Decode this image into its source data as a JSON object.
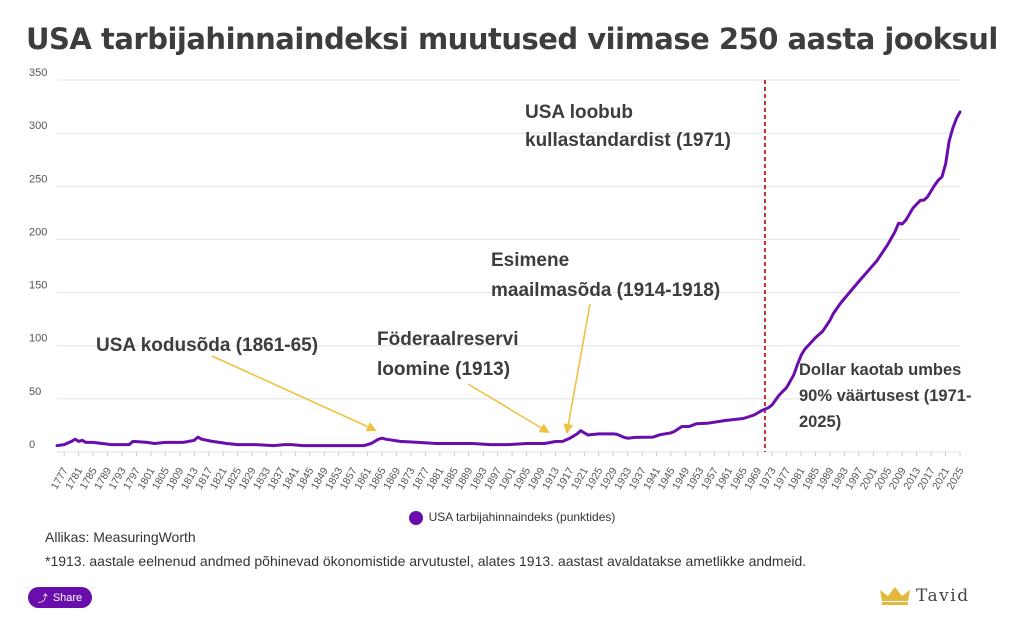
{
  "title": "USA tarbijahinnaindeksi muutused viimase 250 aasta jooksul",
  "legend_label": "USA tarbijahinnaindeks (punktides)",
  "source": "Allikas: MeasuringWorth",
  "footnote": "*1913. aastale eelnenud andmed põhinevad ökonomistide arvutustel, alates 1913. aastast avaldatakse ametlikke andmeid.",
  "share_label": "Share",
  "brand": "Tavid",
  "colors": {
    "series": "#6a0dad",
    "annotation_arrow": "#f0c040",
    "marker_line": "#c00000",
    "share_button": "#6a0dad"
  },
  "icons": {
    "share": "share-icon",
    "brand_logo": "crown-icon"
  },
  "chart_data": {
    "type": "line",
    "ylim": [
      0,
      350
    ],
    "y_ticks": [
      0,
      50,
      100,
      150,
      200,
      250,
      300,
      350
    ],
    "x_tick_labels": [
      "1777",
      "1781",
      "1785",
      "1789",
      "1793",
      "1797",
      "1801",
      "1805",
      "1809",
      "1813",
      "1817",
      "1821",
      "1825",
      "1829",
      "1833",
      "1837",
      "1841",
      "1845",
      "1849",
      "1853",
      "1857",
      "1861",
      "1865",
      "1869",
      "1873",
      "1877",
      "1881",
      "1885",
      "1889",
      "1893",
      "1897",
      "1901",
      "1905",
      "1909",
      "1913",
      "1917",
      "1921",
      "1925",
      "1929",
      "1933",
      "1937",
      "1941",
      "1945",
      "1949",
      "1953",
      "1957",
      "1961",
      "1965",
      "1969",
      "1973",
      "1977",
      "1981",
      "1985",
      "1989",
      "1993",
      "1997",
      "2001",
      "2005",
      "2009",
      "2013",
      "2017",
      "2021",
      "2025"
    ],
    "grid": "horizontal",
    "legend_position": "bottom",
    "series": [
      {
        "name": "USA tarbijahinnaindeks (punktides)",
        "x": [
          1775,
          1777,
          1779,
          1780,
          1781,
          1782,
          1783,
          1785,
          1790,
          1795,
          1796,
          1800,
          1802,
          1805,
          1808,
          1810,
          1813,
          1814,
          1815,
          1818,
          1820,
          1822,
          1825,
          1830,
          1835,
          1838,
          1840,
          1843,
          1845,
          1850,
          1855,
          1860,
          1862,
          1864,
          1865,
          1866,
          1870,
          1875,
          1880,
          1885,
          1890,
          1895,
          1900,
          1905,
          1910,
          1913,
          1915,
          1917,
          1918,
          1919,
          1920,
          1921,
          1922,
          1925,
          1929,
          1930,
          1932,
          1933,
          1935,
          1940,
          1942,
          1945,
          1946,
          1948,
          1950,
          1952,
          1955,
          1960,
          1965,
          1968,
          1970,
          1972,
          1973,
          1975,
          1977,
          1979,
          1980,
          1981,
          1982,
          1985,
          1987,
          1989,
          1990,
          1992,
          1995,
          1997,
          2000,
          2002,
          2005,
          2007,
          2008,
          2009,
          2010,
          2012,
          2014,
          2015,
          2016,
          2018,
          2019,
          2020,
          2021,
          2022,
          2023,
          2024,
          2025
        ],
        "y": [
          6,
          7,
          10,
          12,
          10,
          11,
          9,
          9,
          7,
          7,
          10,
          9,
          8,
          9,
          9,
          9,
          11,
          14,
          12,
          10,
          9,
          8,
          7,
          7,
          6,
          7,
          7,
          6,
          6,
          6,
          6,
          6,
          8,
          12,
          13,
          12,
          10,
          9,
          8,
          8,
          8,
          7,
          7,
          8,
          8,
          9.9,
          10,
          13,
          15,
          17,
          20,
          18,
          16,
          17,
          17,
          16.7,
          13.7,
          13,
          13.7,
          14,
          16.3,
          18,
          19.5,
          24,
          24,
          26.5,
          27,
          29.6,
          31.5,
          34.8,
          38.8,
          41.8,
          44.4,
          53.8,
          60.6,
          72.6,
          82.4,
          90.9,
          96.5,
          107.6,
          113.6,
          124,
          130.7,
          140.3,
          152.4,
          160.5,
          172.2,
          179.9,
          195.3,
          207.3,
          215.3,
          214.5,
          218.1,
          229.6,
          236.7,
          237,
          240,
          251.1,
          255.7,
          258.8,
          271,
          292.7,
          304.7,
          313.7,
          320
        ]
      }
    ],
    "marker_year": 1971,
    "annotations": [
      {
        "text_lines": [
          "USA loobub",
          "kullastandardist (1971)"
        ]
      },
      {
        "text_lines": [
          "Esimene",
          "maailmasõda (1914-1918)"
        ]
      },
      {
        "text_lines": [
          "Föderaalreservi",
          "loomine (1913)"
        ]
      },
      {
        "text_lines": [
          "USA kodusõda (1861-65)"
        ]
      },
      {
        "text_lines": [
          "Dollar kaotab umbes",
          "90% väärtusest (1971-",
          "2025)"
        ]
      }
    ]
  }
}
